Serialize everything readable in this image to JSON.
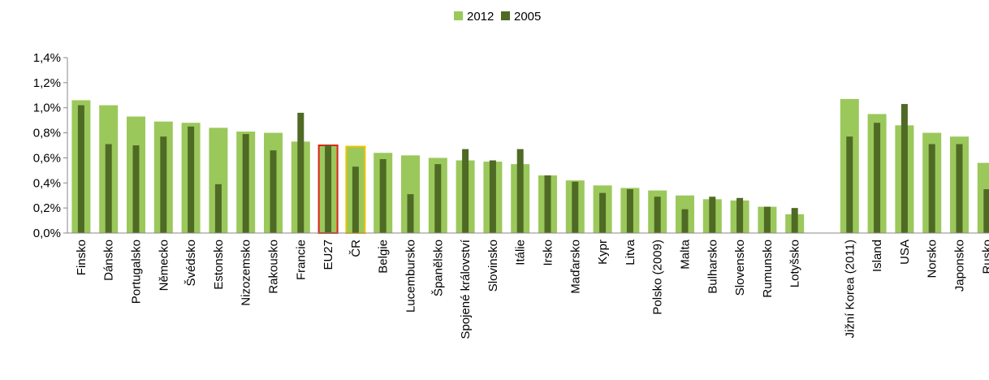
{
  "chart_data": {
    "type": "bar",
    "title": "",
    "xlabel": "",
    "ylabel": "",
    "ylim": [
      0,
      1.4
    ],
    "yticks": [
      "0,0%",
      "0,2%",
      "0,4%",
      "0,6%",
      "0,8%",
      "1,0%",
      "1,2%",
      "1,4%"
    ],
    "grid": false,
    "legend_position": "top-center",
    "colors": {
      "2012": "#9bc85b",
      "2005": "#4f6a24",
      "eu27_outline": "#e0201c",
      "cr_outline": "#f2c100"
    },
    "categories": [
      "Finsko",
      "Dánsko",
      "Portugalsko",
      "Německo",
      "Švédsko",
      "Estonsko",
      "Nizozemsko",
      "Rakousko",
      "Francie",
      "EU27",
      "ČR",
      "Belgie",
      "Lucembursko",
      "Španělsko",
      "Spojené království",
      "Slovinsko",
      "Itálie",
      "Irsko",
      "Maďarsko",
      "Kypr",
      "Litva",
      "Polsko (2009)",
      "Malta",
      "Bulharsko",
      "Slovensko",
      "Rumunsko",
      "Lotyšsko",
      "",
      "Jižní Korea (2011)",
      "Island",
      "USA",
      "Norsko",
      "Japonsko",
      "Rusko"
    ],
    "series": [
      {
        "name": "2012",
        "values": [
          1.06,
          1.02,
          0.93,
          0.89,
          0.88,
          0.84,
          0.81,
          0.8,
          0.73,
          0.7,
          0.69,
          0.64,
          0.62,
          0.6,
          0.58,
          0.57,
          0.55,
          0.46,
          0.42,
          0.38,
          0.36,
          0.34,
          0.3,
          0.27,
          0.26,
          0.21,
          0.15,
          null,
          1.07,
          0.95,
          0.86,
          0.8,
          0.77,
          0.56
        ]
      },
      {
        "name": "2005",
        "values": [
          1.02,
          0.71,
          0.7,
          0.77,
          0.85,
          0.39,
          0.79,
          0.66,
          0.96,
          0.7,
          0.53,
          0.59,
          0.31,
          0.55,
          0.67,
          0.58,
          0.67,
          0.46,
          0.41,
          0.32,
          0.35,
          0.29,
          0.19,
          0.29,
          0.28,
          0.21,
          0.2,
          null,
          0.77,
          0.88,
          1.03,
          0.71,
          0.71,
          0.35
        ]
      }
    ]
  }
}
